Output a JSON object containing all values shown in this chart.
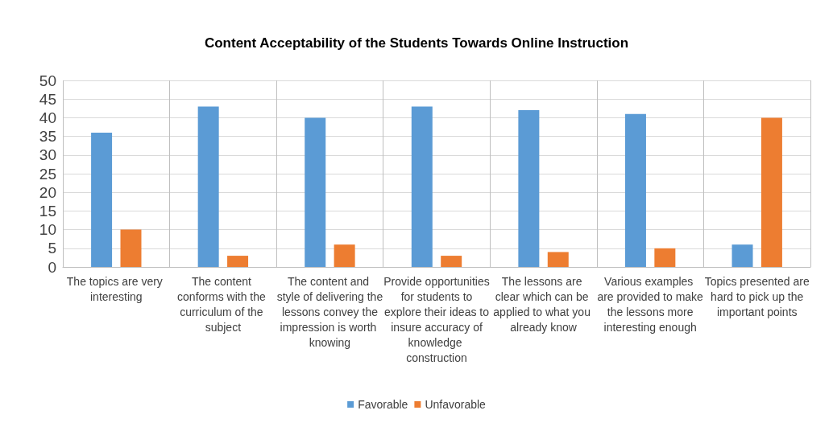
{
  "chart_data": {
    "type": "bar",
    "title": "Content Acceptability of the Students Towards Online Instruction",
    "categories": [
      "The topics are very interesting",
      "The content conforms with the curriculum of the subject",
      "The content and style of delivering the lessons convey the impression is worth knowing",
      "Provide opportunities for students to explore their ideas to insure accuracy of knowledge construction",
      "The lessons are clear which can be applied to what you already know",
      "Various examples are provided to make the lessons more interesting enough",
      "Topics presented are hard to pick up the important points"
    ],
    "series": [
      {
        "name": "Favorable",
        "color": "#5b9bd5",
        "values": [
          36,
          43,
          40,
          43,
          42,
          41,
          6
        ]
      },
      {
        "name": "Unfavorable",
        "color": "#ed7d31",
        "values": [
          10,
          3,
          6,
          3,
          4,
          5,
          40
        ]
      }
    ],
    "ylim": [
      0,
      50
    ],
    "yticks": [
      0,
      5,
      10,
      15,
      20,
      25,
      30,
      35,
      40,
      45,
      50
    ],
    "grid": true,
    "legend": "bottom"
  }
}
